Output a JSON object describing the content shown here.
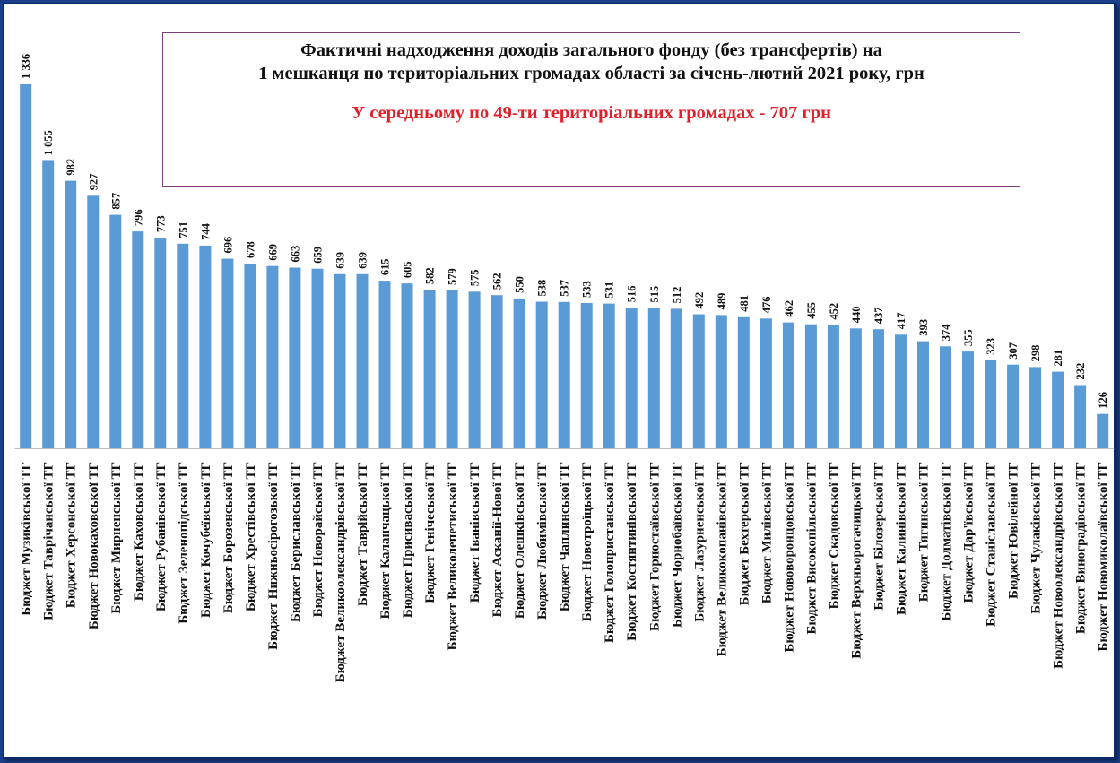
{
  "chart_data": {
    "type": "bar",
    "title": "Фактичні надходження доходів загального фонду (без трансфертів) на",
    "title_line2": "1 мешканця по територіальних громадах області за січень-лютий 2021 року, грн",
    "subtitle": "У середньому по 49-ти територіальних громадах - 707 грн",
    "subtitle_color": "#e0202a",
    "bar_color": "#5b9bd5",
    "ylim": [
      0,
      1336
    ],
    "grid": false,
    "categories": [
      "Бюджет Музиківської  ТГ",
      "Бюджет Таврічанської  ТГ",
      "Бюджет Херсонської  ТГ",
      "Бюджет Новокаховської  ТГ",
      "Бюджет Мирненської  ТГ",
      "Бюджет Каховської  ТГ",
      "Бюджет Рубанівської  ТГ",
      "Бюджет Зеленопідської  ТГ",
      "Бюджет Кочубеївської  ТГ",
      "Бюджет Борозенської  ТГ",
      "Бюджет Хрестівської  ТГ",
      "Бюджет Нижньосірогозької  ТГ",
      "Бюджет Бериславської  ТГ",
      "Бюджет Новорайської  ТГ",
      "Бюджет Великоолександрівської  ТГ",
      "Бюджет Таврійської  ТГ",
      "Бюджет Каланчацької  ТГ",
      "Бюджет Присиваської  ТГ",
      "Бюджет Генічеської  ТГ",
      "Бюджет Великолепетиської  ТГ",
      "Бюджет Іванівської  ТГ",
      "Бюджет Асканії-Нової  ТГ",
      "Бюджет Олешківської  ТГ",
      "Бюджет Любимівської  ТГ",
      "Бюджет Чаплинської  ТГ",
      "Бюджет Новотроїцької  ТГ",
      "Бюджет Голопристанської  ТГ",
      "Бюджет Костянтинівської  ТГ",
      "Бюджет Горностаївської  ТГ",
      "Бюджет Чорнобаївської  ТГ",
      "Бюджет Лазурненської  ТГ",
      "Бюджет Великокопанівської  ТГ",
      "Бюджет Бехтерської  ТГ",
      "Бюджет Милівської  ТГ",
      "Бюджет Нововоронцовської  ТГ",
      "Бюджет Високопільської  ТГ",
      "Бюджет Скадовської  ТГ",
      "Бюджет Верхньорогачицької  ТГ",
      "Бюджет Білозерської  ТГ",
      "Бюджет Калинівської  ТГ",
      "Бюджет Тягинської  ТГ",
      "Бюджет Долматівської  ТГ",
      "Бюджет Дар'ївської  ТГ",
      "Бюджет Станіславської  ТГ",
      "Бюджет Ювілейної  ТГ",
      "Бюджет Чулаківської  ТГ",
      "Бюджет Новоолександрівської  ТГ",
      "Бюджет Виноградівської  ТГ",
      "Бюджет Новомиколаївської  ТГ"
    ],
    "values": [
      1336,
      1055,
      982,
      927,
      857,
      796,
      773,
      751,
      744,
      696,
      678,
      669,
      663,
      659,
      639,
      639,
      615,
      605,
      582,
      579,
      575,
      562,
      550,
      538,
      537,
      533,
      531,
      516,
      515,
      512,
      492,
      489,
      481,
      476,
      462,
      455,
      452,
      440,
      437,
      417,
      393,
      374,
      355,
      323,
      307,
      298,
      281,
      232,
      126
    ],
    "value_labels": [
      "1 336",
      "1 055",
      "982",
      "927",
      "857",
      "796",
      "773",
      "751",
      "744",
      "696",
      "678",
      "669",
      "663",
      "659",
      "639",
      "639",
      "615",
      "605",
      "582",
      "579",
      "575",
      "562",
      "550",
      "538",
      "537",
      "533",
      "531",
      "516",
      "515",
      "512",
      "492",
      "489",
      "481",
      "476",
      "462",
      "455",
      "452",
      "440",
      "437",
      "417",
      "393",
      "374",
      "355",
      "323",
      "307",
      "298",
      "281",
      "232",
      "126"
    ]
  }
}
